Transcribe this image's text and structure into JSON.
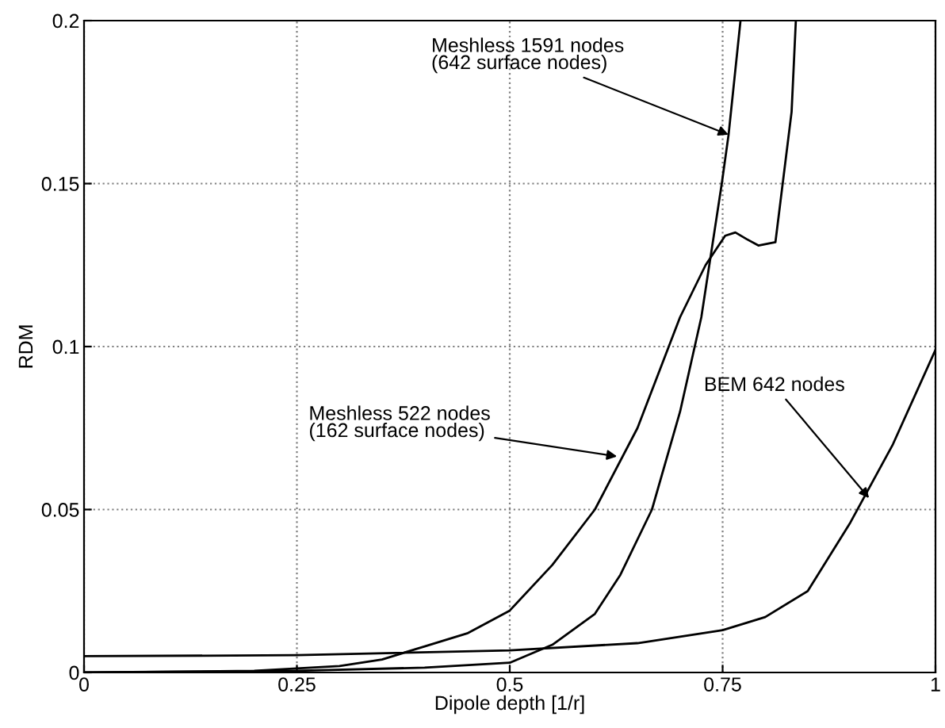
{
  "chart_data": {
    "type": "line",
    "xlabel": "Dipole depth [1/r]",
    "ylabel": "RDM",
    "xlim": [
      0,
      1
    ],
    "ylim": [
      0,
      0.2
    ],
    "xticks": [
      0,
      0.25,
      0.5,
      0.75,
      1
    ],
    "yticks": [
      0,
      0.05,
      0.1,
      0.15,
      0.2
    ],
    "grid": true,
    "marker": "none",
    "line_style": "solid",
    "series": [
      {
        "color": "#000000",
        "x": [
          0,
          0.2,
          0.3,
          0.35,
          0.4,
          0.45,
          0.5,
          0.55,
          0.6,
          0.65,
          0.7,
          0.73,
          0.753,
          0.765,
          0.778,
          0.792,
          0.812,
          0.831,
          0.836
        ],
        "values": [
          0,
          0.0005,
          0.002,
          0.004,
          0.008,
          0.012,
          0.019,
          0.033,
          0.05,
          0.075,
          0.109,
          0.125,
          0.134,
          0.135,
          0.133,
          0.131,
          0.132,
          0.172,
          0.2
        ]
      },
      {
        "color": "#000000",
        "x": [
          0,
          0.25,
          0.4,
          0.5,
          0.55,
          0.6,
          0.63,
          0.667,
          0.7,
          0.725,
          0.749,
          0.757,
          0.771
        ],
        "values": [
          0,
          0.0005,
          0.0015,
          0.003,
          0.0085,
          0.018,
          0.03,
          0.05,
          0.08,
          0.109,
          0.15,
          0.165,
          0.2
        ]
      },
      {
        "color": "#000000",
        "x": [
          0,
          0.25,
          0.5,
          0.65,
          0.75,
          0.8,
          0.85,
          0.9,
          0.95,
          1
        ],
        "values": [
          0.005,
          0.0053,
          0.0068,
          0.009,
          0.013,
          0.017,
          0.025,
          0.046,
          0.07,
          0.099
        ]
      }
    ],
    "annotations": [
      {
        "text": "Meshless 1591 nodes\n(642 surface nodes)",
        "x": 0.757,
        "y": 0.165
      },
      {
        "text": "Meshless 522 nodes\n(162 surface nodes)",
        "x": 0.626,
        "y": 0.0663
      },
      {
        "text": "BEM 642 nodes",
        "x": 0.922,
        "y": 0.0535
      }
    ]
  }
}
